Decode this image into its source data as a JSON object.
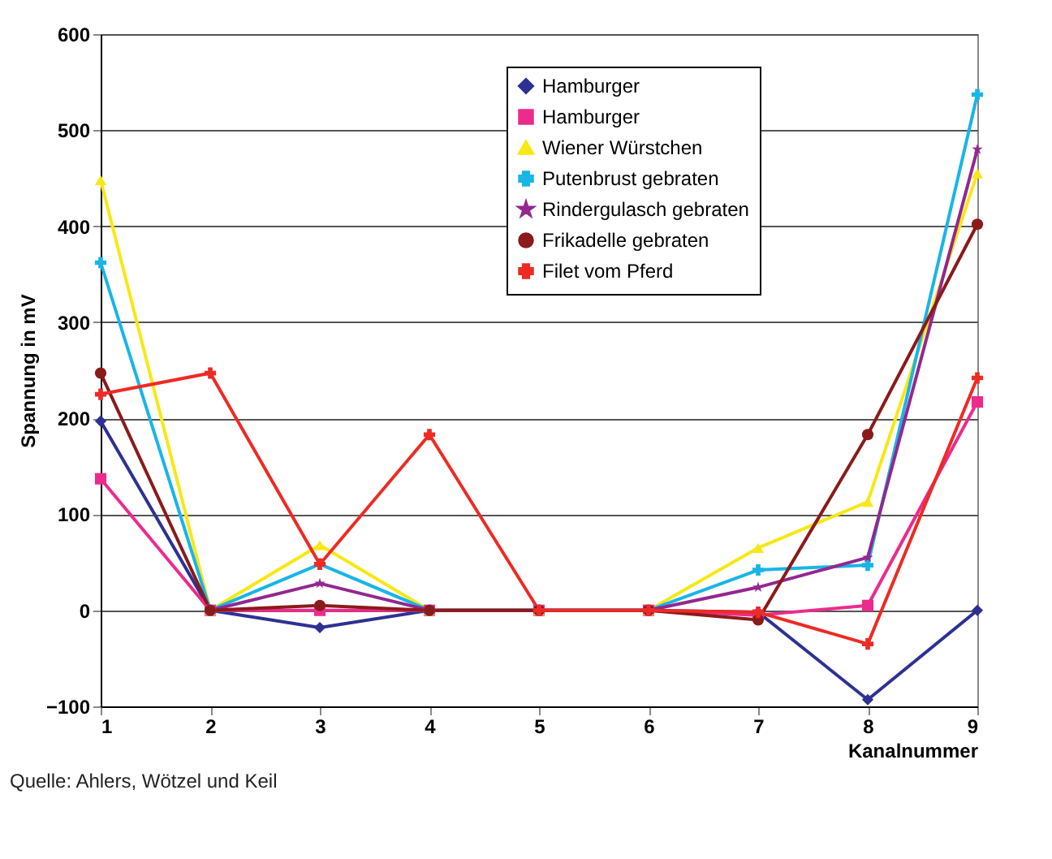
{
  "chart_data": {
    "type": "line",
    "xlabel": "Kanalnummer",
    "ylabel": "Spannung in mV",
    "x": [
      1,
      2,
      3,
      4,
      5,
      6,
      7,
      8,
      9
    ],
    "series": [
      {
        "name": "Hamburger",
        "color": "#2e3192",
        "marker": "diamond",
        "values": [
          197,
          0,
          -18,
          0,
          0,
          0,
          -2,
          -93,
          0
        ]
      },
      {
        "name": "Hamburger",
        "color": "#ec2b8c",
        "marker": "square",
        "values": [
          137,
          0,
          0,
          0,
          0,
          0,
          -5,
          5,
          217
        ]
      },
      {
        "name": "Wiener Würstchen",
        "color": "#f7e816",
        "marker": "triangle",
        "values": [
          448,
          0,
          68,
          0,
          0,
          0,
          65,
          113,
          455
        ]
      },
      {
        "name": "Putenbrust gebraten",
        "color": "#19b5e6",
        "marker": "cross",
        "values": [
          362,
          0,
          48,
          0,
          0,
          0,
          42,
          47,
          537
        ]
      },
      {
        "name": "Rindergulasch gebraten",
        "color": "#93278f",
        "marker": "star",
        "values": [
          null,
          0,
          28,
          0,
          0,
          0,
          24,
          55,
          480
        ]
      },
      {
        "name": "Frikadelle gebraten",
        "color": "#8b1a1a",
        "marker": "circle",
        "values": [
          247,
          0,
          5,
          0,
          0,
          0,
          -10,
          183,
          402
        ]
      },
      {
        "name": "Filet vom Pferd",
        "color": "#ee2a24",
        "marker": "cross",
        "values": [
          225,
          247,
          48,
          183,
          0,
          0,
          -2,
          -35,
          242
        ]
      }
    ],
    "xlim": [
      1,
      9
    ],
    "xticks": [
      1,
      2,
      3,
      4,
      5,
      6,
      7,
      8,
      9
    ],
    "ylim": [
      -100,
      600
    ],
    "yticks": [
      -100,
      0,
      100,
      200,
      300,
      400,
      500,
      600
    ],
    "grid": "y",
    "legend": "top right",
    "annotations": [
      "Quelle: Ahlers, Wötzel und Keil"
    ]
  }
}
